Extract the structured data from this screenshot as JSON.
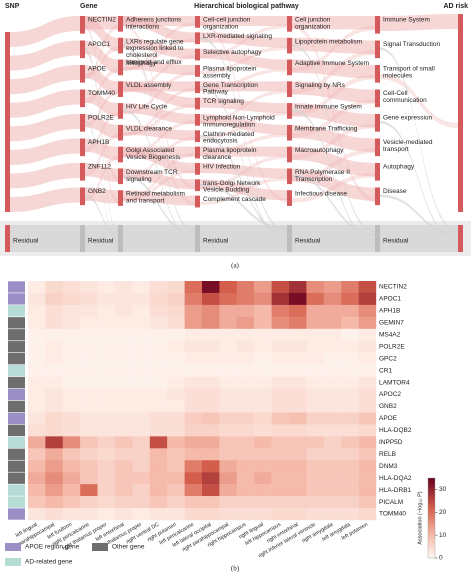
{
  "sankey": {
    "headers": [
      "SNP",
      "Gene",
      "Hierarchical biological pathway",
      "AD risk"
    ],
    "columns": [
      {
        "nodes": [],
        "residual": "Residual"
      },
      {
        "nodes": [
          "NECTIN2",
          "APOC1",
          "APOE",
          "TOMM40",
          "POLR2E",
          "APH1B",
          "ZNF112",
          "GNB2"
        ],
        "residual": "Residual"
      },
      {
        "nodes": [
          "Adherens junctions interactions",
          "LXRs regulate gene expression linked to cholesterol transport and efflux",
          "Mitophagy",
          "VLDL assembly",
          "HIV Life Cycle",
          "VLDL clearance",
          "Golgi Associated Vesicle Biogenesis",
          "Downstream TCR signaling",
          "Retinoid metabolism and transport"
        ]
      },
      {
        "nodes": [
          "Cell-cell junction organization",
          "LXR-mediated signaling",
          "Selective autophagy",
          "Plasma lipoprotein assembly",
          "Gene Transcription Pathway",
          "TCR signaling",
          "Lymphoid Non-Lymphoid Immunoregulation",
          "Clathrin-mediated endocytosis",
          "Plasma lipoprotein clearance",
          "HIV Infection",
          "trans-Golgi Network Vesicle Budding",
          "Complement cascade"
        ],
        "residual": "Residual"
      },
      {
        "nodes": [
          "Cell junction organization",
          "Lipoprotein metabolism",
          "Adaptive Immune System",
          "Signaling by NRs",
          "Innate Immune System",
          "Membrane Trafficking",
          "Macroautophagy",
          "RNA Polymerase II Transcription",
          "Infectious disease"
        ],
        "residual": "Residual"
      },
      {
        "nodes": [
          "Immune System",
          "Signal Transduction",
          "Transport of small molecules",
          "Cell-Cell communication",
          "Gene expression",
          "Vesicle-mediated transport",
          "Autophagy",
          "Disease"
        ],
        "residual": "Residual"
      },
      {
        "nodes": []
      }
    ]
  },
  "captions": [
    "(a)",
    "(b)"
  ],
  "chart_data": {
    "type": "heatmap",
    "rows": [
      "NECTIN2",
      "APOC1",
      "APH1B",
      "GEMIN7",
      "MS4A2",
      "POLR2E",
      "GPC2",
      "CR1",
      "LAMTOR4",
      "APOC2",
      "GNB2",
      "APOE",
      "HLA-DQB2",
      "INPP5D",
      "RELB",
      "DNM3",
      "HLA-DQA2",
      "HLA-DRB1",
      "PICALM",
      "TOMM40"
    ],
    "columns": [
      "left lingual",
      "left parahippocampal",
      "left fusiform",
      "right pericalcarine",
      "right thalamus proper",
      "left entorhinal",
      "left thalamus proper",
      "right ventral DC",
      "right putamen",
      "left pericalcarine",
      "left lateral occipital",
      "right parahippocampal",
      "right hippocampus",
      "right lingual",
      "left hippocampus",
      "right entorhinal",
      "right inferior lateral ventricle",
      "right amygdala",
      "left amygdala",
      "left putamen"
    ],
    "values": [
      [
        2,
        5,
        4,
        3,
        2,
        3,
        2,
        4,
        5,
        20,
        33,
        22,
        18,
        14,
        24,
        28,
        16,
        14,
        18,
        24
      ],
      [
        3,
        6,
        5,
        4,
        3,
        3,
        3,
        5,
        6,
        18,
        24,
        20,
        18,
        16,
        28,
        33,
        20,
        16,
        20,
        26
      ],
      [
        2,
        4,
        3,
        3,
        2,
        3,
        2,
        4,
        5,
        14,
        16,
        12,
        12,
        10,
        18,
        20,
        12,
        12,
        12,
        16
      ],
      [
        2,
        4,
        3,
        2,
        2,
        2,
        2,
        3,
        4,
        14,
        16,
        12,
        14,
        10,
        16,
        18,
        12,
        12,
        10,
        14
      ],
      [
        1,
        1,
        1,
        1,
        1,
        1,
        1,
        1,
        1,
        2,
        2,
        2,
        2,
        2,
        2,
        2,
        2,
        2,
        1,
        2
      ],
      [
        1,
        2,
        1,
        1,
        1,
        1,
        1,
        1,
        2,
        3,
        3,
        2,
        3,
        2,
        3,
        3,
        2,
        2,
        2,
        3
      ],
      [
        1,
        2,
        1,
        1,
        1,
        1,
        1,
        1,
        1,
        2,
        2,
        2,
        2,
        1,
        2,
        2,
        2,
        1,
        1,
        2
      ],
      [
        1,
        1,
        1,
        1,
        1,
        1,
        1,
        1,
        1,
        1,
        1,
        1,
        1,
        1,
        1,
        1,
        1,
        1,
        1,
        1
      ],
      [
        2,
        2,
        1,
        1,
        1,
        1,
        1,
        1,
        2,
        3,
        3,
        2,
        2,
        2,
        3,
        3,
        2,
        2,
        2,
        3
      ],
      [
        2,
        3,
        2,
        2,
        2,
        2,
        2,
        2,
        3,
        4,
        4,
        3,
        3,
        3,
        4,
        4,
        3,
        3,
        3,
        4
      ],
      [
        2,
        3,
        2,
        2,
        2,
        2,
        2,
        2,
        2,
        4,
        4,
        3,
        3,
        3,
        4,
        4,
        3,
        3,
        3,
        4
      ],
      [
        3,
        5,
        4,
        3,
        3,
        3,
        3,
        4,
        4,
        7,
        8,
        6,
        6,
        5,
        8,
        9,
        6,
        6,
        6,
        8
      ],
      [
        4,
        5,
        4,
        3,
        3,
        3,
        3,
        4,
        4,
        6,
        6,
        5,
        5,
        4,
        5,
        5,
        4,
        4,
        4,
        5
      ],
      [
        12,
        26,
        16,
        8,
        6,
        8,
        6,
        24,
        10,
        12,
        12,
        8,
        8,
        10,
        8,
        8,
        8,
        6,
        8,
        10
      ],
      [
        8,
        12,
        8,
        6,
        5,
        6,
        6,
        10,
        8,
        10,
        10,
        8,
        8,
        8,
        8,
        8,
        6,
        6,
        6,
        8
      ],
      [
        10,
        14,
        10,
        8,
        6,
        8,
        6,
        10,
        8,
        18,
        22,
        12,
        10,
        10,
        10,
        10,
        8,
        8,
        8,
        10
      ],
      [
        12,
        16,
        12,
        8,
        6,
        8,
        8,
        10,
        10,
        22,
        26,
        14,
        10,
        12,
        10,
        10,
        8,
        8,
        8,
        10
      ],
      [
        10,
        14,
        10,
        20,
        6,
        8,
        6,
        10,
        8,
        18,
        24,
        12,
        10,
        10,
        10,
        10,
        8,
        8,
        8,
        10
      ],
      [
        8,
        10,
        8,
        6,
        5,
        6,
        6,
        8,
        6,
        8,
        8,
        6,
        6,
        6,
        6,
        6,
        6,
        6,
        6,
        8
      ],
      [
        3,
        4,
        3,
        3,
        2,
        3,
        2,
        3,
        3,
        5,
        5,
        4,
        4,
        4,
        5,
        5,
        4,
        4,
        4,
        5
      ]
    ],
    "row_groups": [
      0,
      0,
      2,
      1,
      1,
      1,
      1,
      2,
      1,
      0,
      1,
      0,
      1,
      2,
      1,
      1,
      1,
      2,
      2,
      0
    ],
    "groups": [
      {
        "name": "APOE region gene",
        "color": "#9c8fc6"
      },
      {
        "name": "Other gene",
        "color": "#6e6e6e"
      },
      {
        "name": "AD-related gene",
        "color": "#b7dcd6"
      }
    ],
    "zlim": [
      0,
      35
    ],
    "zticks": [
      0,
      10,
      20,
      30
    ],
    "colorbar_label": "Association (−log₁₀ P)"
  }
}
